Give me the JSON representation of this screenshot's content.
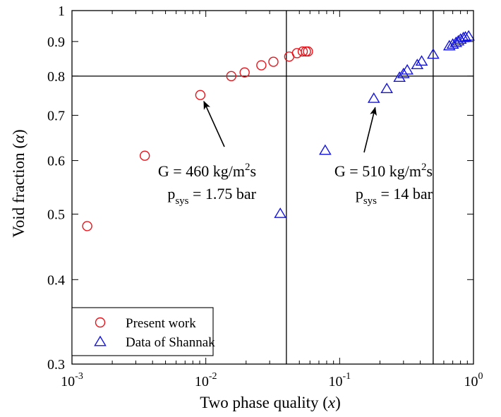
{
  "chart_data": {
    "type": "scatter",
    "xscale": "log",
    "yscale": "log",
    "xlim": [
      0.001,
      1
    ],
    "ylim": [
      0.3,
      1
    ],
    "x_ticks": [
      {
        "value": 0.001,
        "base": "10",
        "exp": "-3"
      },
      {
        "value": 0.01,
        "base": "10",
        "exp": "-2"
      },
      {
        "value": 0.1,
        "base": "10",
        "exp": "-1"
      },
      {
        "value": 1,
        "base": "10",
        "exp": "0"
      }
    ],
    "y_ticks": [
      {
        "value": 0.3,
        "label": "0.3"
      },
      {
        "value": 0.4,
        "label": "0.4"
      },
      {
        "value": 0.5,
        "label": "0.5"
      },
      {
        "value": 0.6,
        "label": "0.6"
      },
      {
        "value": 0.7,
        "label": "0.7"
      },
      {
        "value": 0.8,
        "label": "0.8"
      },
      {
        "value": 0.9,
        "label": "0.9"
      },
      {
        "value": 1,
        "label": "1"
      }
    ],
    "xlabel": {
      "pre": "Two phase quality (",
      "sym": "x",
      "post": ")"
    },
    "ylabel": {
      "pre": "Void fraction (",
      "sym": "α",
      "post": ")"
    },
    "reference_lines": {
      "vertical_x": [
        0.04,
        0.5
      ],
      "horizontal_y": [
        0.8
      ]
    },
    "series": [
      {
        "name": "Present work",
        "marker": "circle",
        "color": "#e8141b",
        "x": [
          0.0013,
          0.0035,
          0.0091,
          0.0155,
          0.0195,
          0.026,
          0.032,
          0.042,
          0.048,
          0.053,
          0.056,
          0.058
        ],
        "y": [
          0.48,
          0.61,
          0.75,
          0.8,
          0.81,
          0.83,
          0.84,
          0.855,
          0.865,
          0.87,
          0.87,
          0.87
        ]
      },
      {
        "name": "Data of Shannak",
        "marker": "triangle",
        "color": "#1414e0",
        "x": [
          0.036,
          0.078,
          0.18,
          0.225,
          0.28,
          0.3,
          0.32,
          0.38,
          0.41,
          0.5,
          0.66,
          0.7,
          0.74,
          0.77,
          0.8,
          0.84,
          0.87,
          0.92
        ],
        "y": [
          0.5,
          0.62,
          0.74,
          0.765,
          0.795,
          0.805,
          0.815,
          0.83,
          0.84,
          0.86,
          0.885,
          0.89,
          0.895,
          0.9,
          0.905,
          0.91,
          0.912,
          0.915
        ]
      }
    ],
    "legend": {
      "position": "bottom-left"
    },
    "annotations": [
      {
        "g_pre": "G = 460 kg/m",
        "g_sup": "2",
        "g_post": "s",
        "p_main": "p",
        "p_sub": "sys",
        "p_post": " = 1.75 bar",
        "target_x": 0.0091,
        "target_y": 0.75
      },
      {
        "g_pre": "G = 510 kg/m",
        "g_sup": "2",
        "g_post": "s",
        "p_main": "p",
        "p_sub": "sys",
        "p_post": " = 14 bar",
        "target_x": 0.18,
        "target_y": 0.74
      }
    ]
  }
}
